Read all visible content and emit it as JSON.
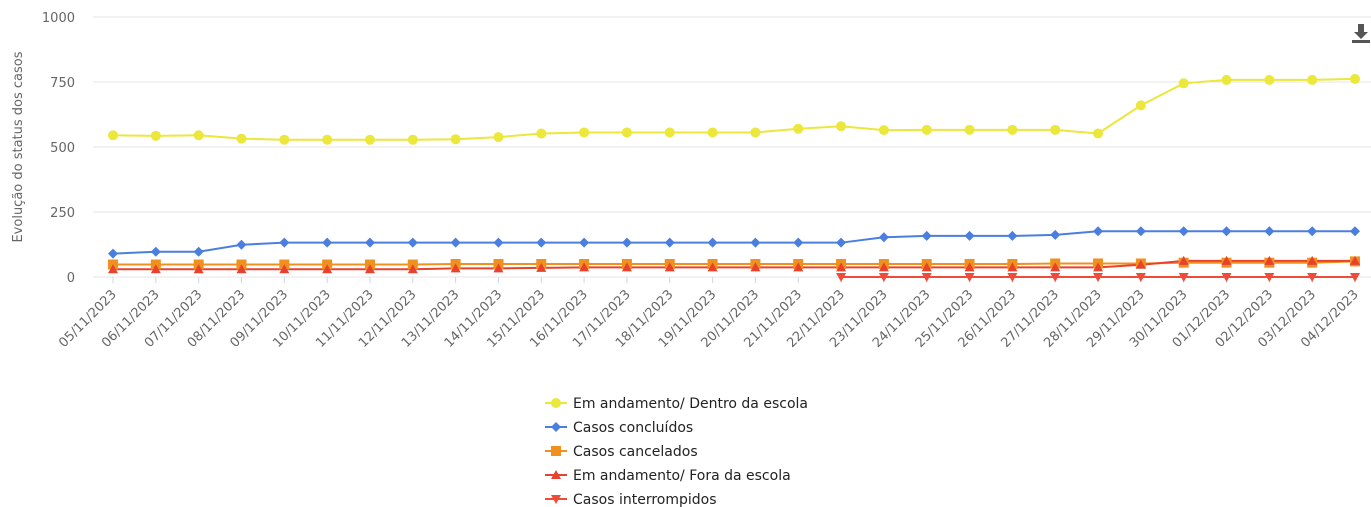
{
  "chart_data": {
    "type": "line",
    "y_label": "Evolução do status dos casos",
    "categories": [
      "05/11/2023",
      "06/11/2023",
      "07/11/2023",
      "08/11/2023",
      "09/11/2023",
      "10/11/2023",
      "11/11/2023",
      "12/11/2023",
      "13/11/2023",
      "14/11/2023",
      "15/11/2023",
      "16/11/2023",
      "17/11/2023",
      "18/11/2023",
      "19/11/2023",
      "20/11/2023",
      "21/11/2023",
      "22/11/2023",
      "23/11/2023",
      "24/11/2023",
      "25/11/2023",
      "26/11/2023",
      "27/11/2023",
      "28/11/2023",
      "29/11/2023",
      "30/11/2023",
      "01/12/2023",
      "02/12/2023",
      "03/12/2023",
      "04/12/2023"
    ],
    "series": [
      {
        "name": "Em andamento/ Dentro da escola",
        "color": "#ebe73b",
        "marker": "circle",
        "values": [
          545,
          543,
          545,
          532,
          528,
          528,
          528,
          528,
          530,
          538,
          552,
          556,
          556,
          556,
          556,
          556,
          570,
          580,
          565,
          566,
          566,
          566,
          566,
          552,
          660,
          745,
          758,
          758,
          758,
          762
        ]
      },
      {
        "name": "Casos concluídos",
        "color": "#4a7fe0",
        "marker": "diamond",
        "values": [
          90,
          97,
          97,
          124,
          132,
          132,
          132,
          132,
          132,
          132,
          132,
          132,
          132,
          132,
          132,
          132,
          132,
          132,
          153,
          158,
          158,
          158,
          162,
          176,
          176,
          176,
          176,
          176,
          176,
          176
        ]
      },
      {
        "name": "Casos cancelados",
        "color": "#f0901e",
        "marker": "square",
        "values": [
          48,
          48,
          48,
          48,
          48,
          48,
          48,
          48,
          50,
          50,
          50,
          50,
          50,
          50,
          50,
          50,
          50,
          50,
          50,
          50,
          50,
          50,
          52,
          52,
          52,
          55,
          55,
          55,
          55,
          60
        ]
      },
      {
        "name": "Em andamento/ Fora da escola",
        "color": "#e8422f",
        "marker": "triangle",
        "values": [
          30,
          30,
          30,
          30,
          30,
          30,
          30,
          30,
          33,
          33,
          35,
          37,
          37,
          37,
          37,
          37,
          37,
          37,
          37,
          37,
          37,
          37,
          37,
          37,
          47,
          62,
          62,
          62,
          62,
          62
        ]
      },
      {
        "name": "Casos interrompidos",
        "color": "#f04a3a",
        "marker": "triangle-down",
        "values": [
          null,
          null,
          null,
          null,
          null,
          null,
          null,
          null,
          null,
          null,
          null,
          null,
          null,
          null,
          null,
          null,
          null,
          0,
          0,
          0,
          0,
          0,
          0,
          0,
          0,
          0,
          0,
          0,
          0,
          0
        ]
      }
    ],
    "ylim": [
      0,
      1000
    ],
    "yticks": [
      0,
      250,
      500,
      750,
      1000
    ],
    "grid": true
  }
}
